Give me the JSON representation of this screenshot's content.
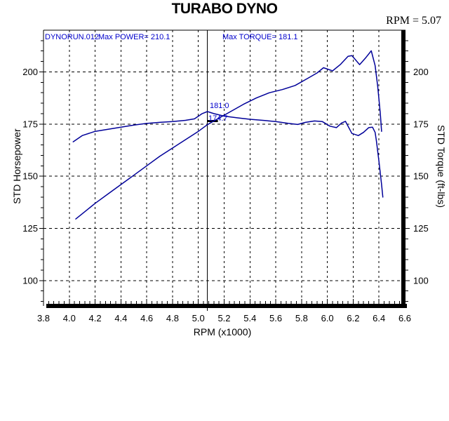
{
  "title": "TURABO DYNO",
  "readout": {
    "rpm_label": "RPM = 5.07"
  },
  "annotations": {
    "run_label": "DYNORUN.012",
    "max_power_label": "Max POWER= 210.1",
    "max_torque_label": "Max TORQUE= 181.1",
    "cursor_torque_value": "181.0",
    "cursor_power_value": "174.7"
  },
  "chart_data": {
    "type": "line",
    "title": "TURABO DYNO",
    "xlabel": "RPM (x1000)",
    "ylabel_left": "STD Horsepower",
    "ylabel_right": "STD Torque (ft-lbs)",
    "xlim": [
      3.8,
      6.6
    ],
    "ylim": [
      87.5,
      220
    ],
    "x_ticks": [
      3.8,
      4.0,
      4.2,
      4.4,
      4.6,
      4.8,
      5.0,
      5.2,
      5.4,
      5.6,
      5.8,
      6.0,
      6.2,
      6.4,
      6.6
    ],
    "x_tick_labels": [
      "3.8",
      "4.0",
      "4.2",
      "4.4",
      "4.6",
      "4.8",
      "5.0",
      "5.2",
      "5.4",
      "5.6",
      "5.8",
      "6.0",
      "6.2",
      "6.4",
      "6.6"
    ],
    "y_ticks": [
      100,
      125,
      150,
      175,
      200
    ],
    "y_tick_labels": [
      "100",
      "125",
      "150",
      "175",
      "200"
    ],
    "x_minor_step": 0.04,
    "y_minor_step": 5,
    "grid": true,
    "legend_position": "top-inside",
    "cursor": {
      "rpm": 5.07,
      "torque": 181.0,
      "power": 174.7
    },
    "colors": {
      "curve": "#000099",
      "annotation": "#0000CC",
      "axis": "#000000"
    },
    "series": [
      {
        "name": "power",
        "x": [
          4.05,
          4.1,
          4.2,
          4.3,
          4.4,
          4.5,
          4.6,
          4.7,
          4.8,
          4.9,
          5.0,
          5.07,
          5.15,
          5.25,
          5.35,
          5.45,
          5.55,
          5.65,
          5.75,
          5.85,
          5.92,
          5.97,
          6.04,
          6.1,
          6.16,
          6.19,
          6.25,
          6.3,
          6.34,
          6.37,
          6.39,
          6.41,
          6.42
        ],
        "y": [
          129.5,
          132,
          137,
          141.5,
          146,
          150.5,
          155,
          159.5,
          163.5,
          167.5,
          171.5,
          174.7,
          177.5,
          181,
          184.5,
          187.5,
          190,
          191.5,
          193.5,
          197,
          199.5,
          202,
          200.5,
          203.5,
          207.5,
          207.8,
          203.5,
          207,
          210.1,
          203,
          193,
          180,
          171.5
        ],
        "max": 210.1
      },
      {
        "name": "torque",
        "x": [
          4.03,
          4.1,
          4.2,
          4.3,
          4.4,
          4.5,
          4.6,
          4.7,
          4.8,
          4.9,
          4.97,
          5.03,
          5.07,
          5.12,
          5.2,
          5.3,
          5.4,
          5.5,
          5.6,
          5.7,
          5.77,
          5.83,
          5.9,
          5.96,
          6.02,
          6.07,
          6.11,
          6.14,
          6.19,
          6.24,
          6.28,
          6.32,
          6.35,
          6.37,
          6.38,
          6.4,
          6.42,
          6.43
        ],
        "y": [
          166.5,
          169.5,
          171.5,
          172.5,
          173.5,
          174.5,
          175.3,
          175.8,
          176.2,
          176.8,
          177.5,
          180,
          181,
          180,
          178.8,
          178,
          177.3,
          176.8,
          176.2,
          175.3,
          174.8,
          175.8,
          176.5,
          176.2,
          174,
          173.3,
          175.5,
          176.3,
          170.5,
          169.5,
          171,
          173.3,
          173.5,
          171,
          167,
          157,
          146,
          140
        ],
        "max": 181.1
      }
    ]
  }
}
